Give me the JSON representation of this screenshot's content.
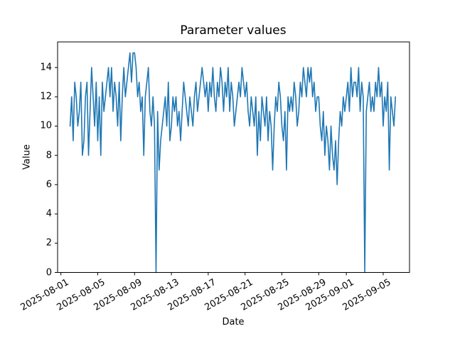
{
  "figure": {
    "background": "#ffffff"
  },
  "chart_data": {
    "type": "line",
    "title": "Parameter values",
    "xlabel": "Date",
    "ylabel": "Value",
    "line_color": "#1f77b4",
    "axis_color": "#000000",
    "legend": "none",
    "grid": false,
    "x_origin_date": "2025-08-01",
    "xlim_days": [
      -0.36,
      37.86
    ],
    "ylim": [
      0,
      15.75
    ],
    "xtick_days": [
      0,
      4,
      8,
      12,
      16,
      20,
      24,
      28,
      31,
      35
    ],
    "xtick_labels": [
      "2025-08-01",
      "2025-08-05",
      "2025-08-09",
      "2025-08-13",
      "2025-08-17",
      "2025-08-21",
      "2025-08-25",
      "2025-08-29",
      "2025-09-01",
      "2025-09-05"
    ],
    "ytick_values": [
      0,
      2,
      4,
      6,
      8,
      10,
      12,
      14
    ],
    "ytick_labels": [
      "0",
      "2",
      "4",
      "6",
      "8",
      "10",
      "12",
      "14"
    ],
    "series_start": "2025-08-02 00:00",
    "series_start_day_offset": 1.0,
    "step_hours": 4,
    "values": [
      10,
      12,
      9,
      13,
      12,
      10,
      11,
      13,
      8,
      9,
      12,
      13,
      8,
      11,
      14,
      12,
      10,
      13,
      9,
      12,
      8,
      13,
      11,
      12,
      13,
      14,
      12,
      14,
      11,
      13,
      12,
      10,
      13,
      9,
      12,
      14,
      12,
      13,
      14,
      15,
      13,
      15,
      15,
      14,
      12,
      13,
      11,
      12,
      8,
      12,
      13,
      14,
      11,
      10,
      12,
      10,
      0,
      11,
      7,
      9,
      10,
      11,
      12,
      10,
      13,
      9,
      10,
      12,
      11,
      12,
      10,
      11,
      9,
      11,
      13,
      12,
      11,
      10,
      12,
      11,
      10,
      12,
      13,
      11,
      12,
      13,
      14,
      13,
      12,
      13,
      11,
      13,
      12,
      14,
      12,
      11,
      13,
      12,
      14,
      13,
      11,
      13,
      12,
      14,
      11,
      13,
      12,
      10,
      11,
      12,
      13,
      12,
      14,
      13,
      12,
      13,
      11,
      10,
      12,
      11,
      10,
      12,
      8,
      11,
      9,
      12,
      11,
      10,
      12,
      9,
      11,
      10,
      7,
      10,
      12,
      11,
      13,
      12,
      10,
      9,
      11,
      7,
      12,
      11,
      12,
      11,
      13,
      12,
      10,
      11,
      13,
      12,
      14,
      13,
      12,
      14,
      13,
      14,
      12,
      13,
      11,
      12,
      12,
      10,
      9,
      11,
      8,
      10,
      9,
      7,
      10,
      8,
      7,
      9,
      6,
      9,
      11,
      10,
      12,
      11,
      12,
      13,
      11,
      14,
      12,
      13,
      13,
      12,
      14,
      11,
      13,
      12,
      0,
      11,
      12,
      13,
      11,
      12,
      11,
      13,
      12,
      14,
      12,
      13,
      10,
      12,
      11,
      13,
      7,
      12,
      11,
      10,
      12
    ]
  }
}
